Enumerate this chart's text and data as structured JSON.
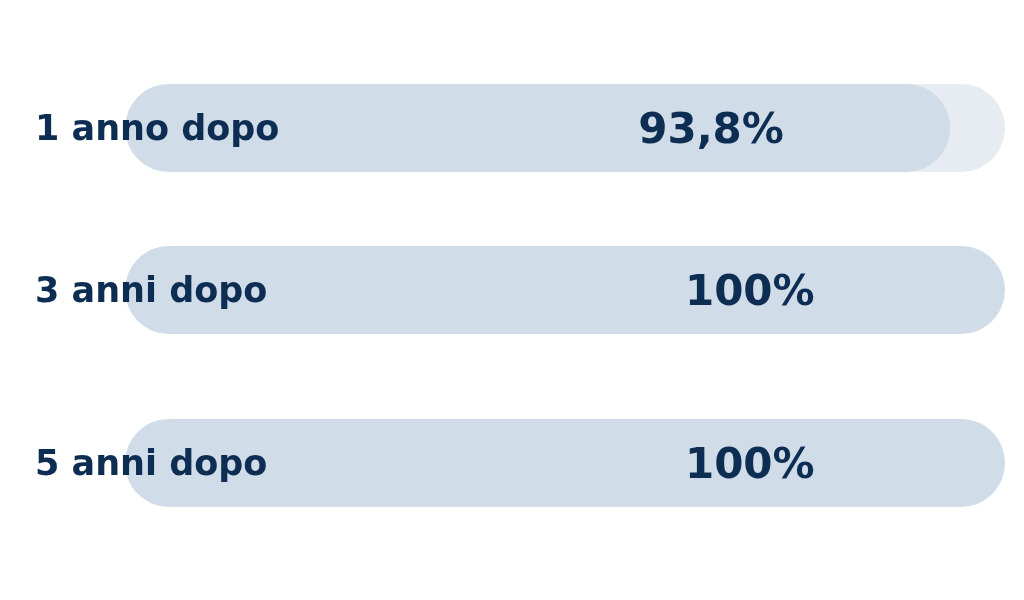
{
  "chart_data": {
    "type": "bar",
    "orientation": "horizontal",
    "categories": [
      "1 anno dopo",
      "3 anni dopo",
      "5 anni dopo"
    ],
    "values": [
      93.8,
      100,
      100
    ],
    "color": "#d0dde9",
    "xlim": [
      0,
      100
    ],
    "value_labels": [
      "93,8%",
      "100%",
      "100%"
    ]
  }
}
